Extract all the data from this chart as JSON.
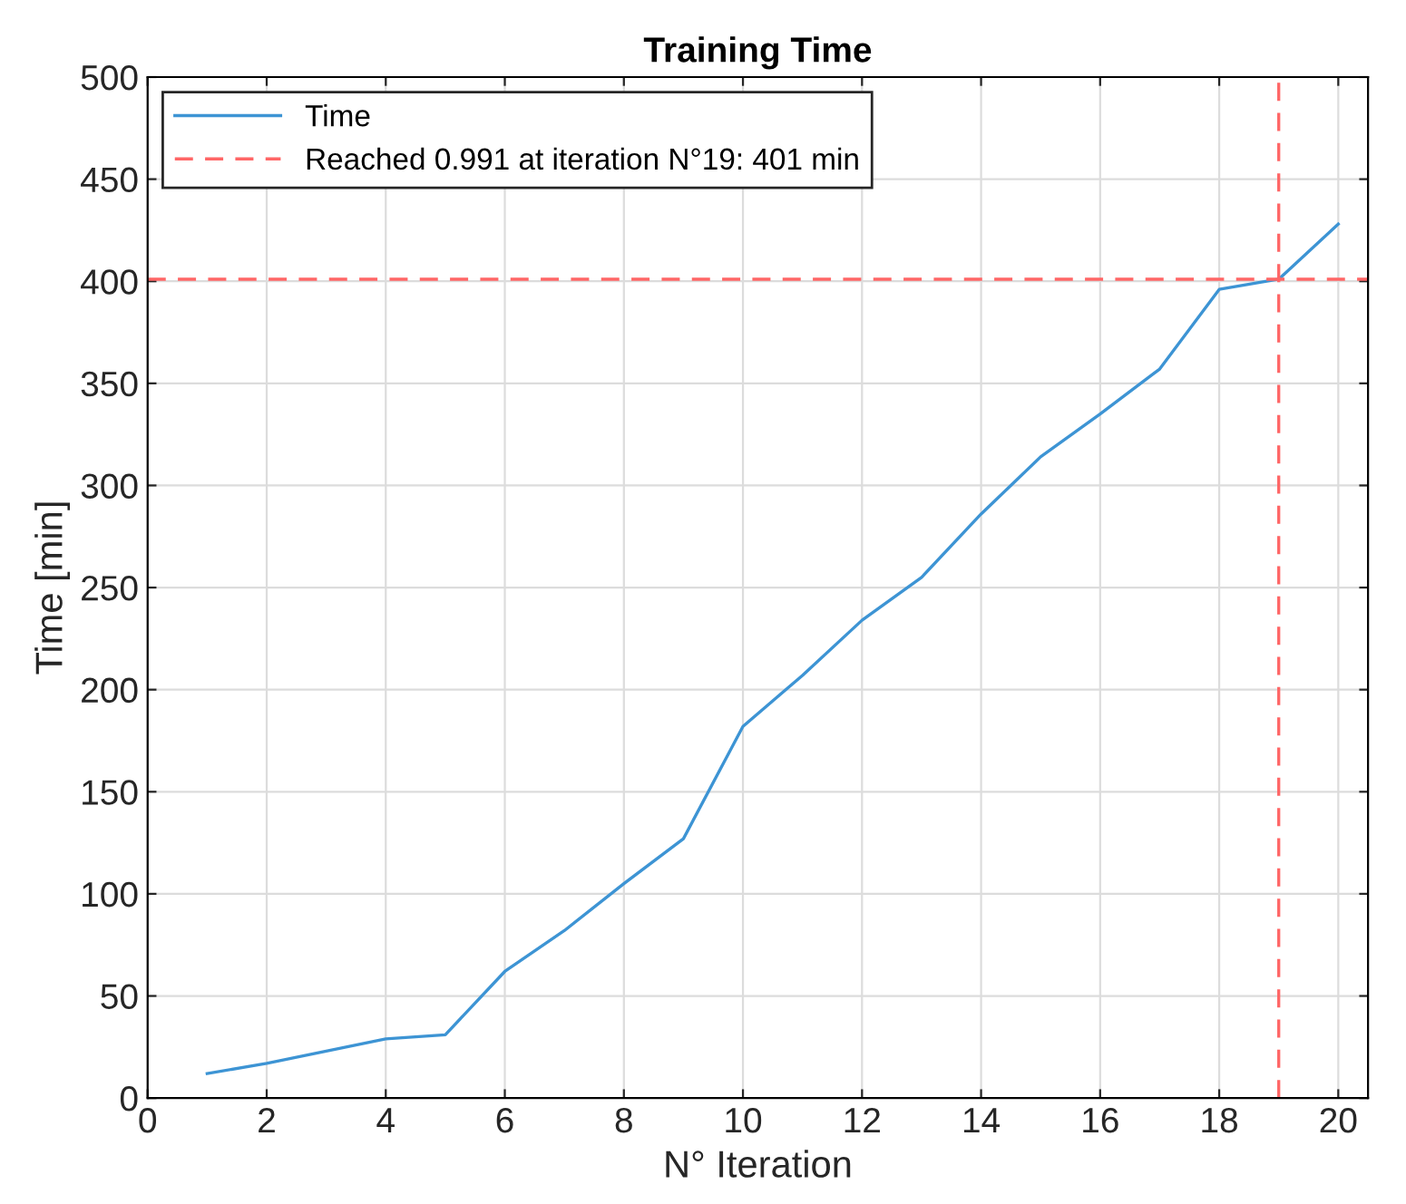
{
  "chart_data": {
    "type": "line",
    "title": "Training Time",
    "xlabel": "N° Iteration",
    "ylabel": "Time [min]",
    "x": [
      1,
      2,
      3,
      4,
      5,
      6,
      7,
      8,
      9,
      10,
      11,
      12,
      13,
      14,
      15,
      16,
      17,
      18,
      19,
      20
    ],
    "series": [
      {
        "name": "Time",
        "color": "#3d94d4",
        "values": [
          12,
          17,
          23,
          29,
          31,
          62,
          82,
          105,
          127,
          182,
          207,
          234,
          255,
          286,
          314,
          335,
          357,
          396,
          401,
          428
        ]
      }
    ],
    "ref_lines": [
      {
        "axis": "y",
        "value": 401,
        "label": "Reached 0.991 at iteration N°19: 401 min",
        "color": "#ff6666",
        "line_style": "dashed"
      },
      {
        "axis": "x",
        "value": 19,
        "color": "#ff6666",
        "line_style": "dashed"
      }
    ],
    "xlim": [
      0,
      20.5
    ],
    "xticks": [
      0,
      2,
      4,
      6,
      8,
      10,
      12,
      14,
      16,
      18,
      20
    ],
    "ylim": [
      0,
      500
    ],
    "yticks": [
      0,
      50,
      100,
      150,
      200,
      250,
      300,
      350,
      400,
      450,
      500
    ],
    "grid": true,
    "legend": "top left",
    "marker": "none",
    "line_style": "solid"
  }
}
